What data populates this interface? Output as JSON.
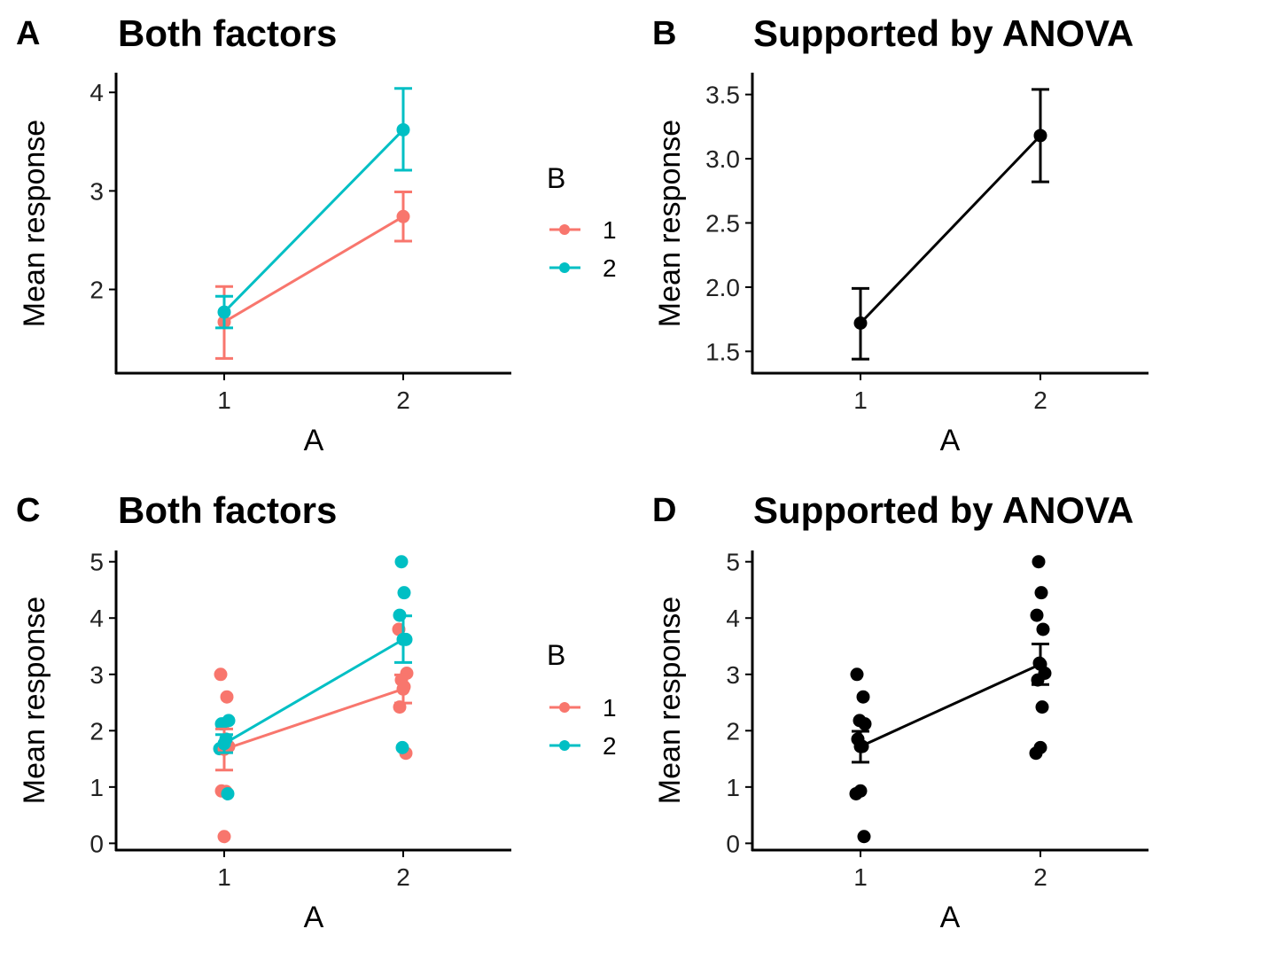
{
  "colors": {
    "series_1": "#F8766D",
    "series_2": "#00BFC4",
    "black": "#000000"
  },
  "chart_data": [
    {
      "panel": "A",
      "type": "line",
      "title": "Both factors",
      "xlabel": "A",
      "ylabel": "Mean response",
      "categories": [
        "1",
        "2"
      ],
      "y_ticks": [
        "2",
        "3",
        "4"
      ],
      "ylim": [
        1.15,
        4.2
      ],
      "legend": {
        "title": "B",
        "position": "right"
      },
      "series": [
        {
          "name": "1",
          "color": "#F8766D",
          "means": [
            1.67,
            2.74
          ],
          "lower": [
            1.3,
            2.49
          ],
          "upper": [
            2.03,
            2.99
          ]
        },
        {
          "name": "2",
          "color": "#00BFC4",
          "means": [
            1.77,
            3.62
          ],
          "lower": [
            1.61,
            3.21
          ],
          "upper": [
            1.93,
            4.04
          ]
        }
      ]
    },
    {
      "panel": "B",
      "type": "line",
      "title": "Supported by ANOVA",
      "xlabel": "A",
      "ylabel": "Mean response",
      "categories": [
        "1",
        "2"
      ],
      "y_ticks": [
        "1.5",
        "2.0",
        "2.5",
        "3.0",
        "3.5"
      ],
      "ylim": [
        1.33,
        3.67
      ],
      "series": [
        {
          "color": "#000000",
          "means": [
            1.72,
            3.18
          ],
          "lower": [
            1.44,
            2.82
          ],
          "upper": [
            1.99,
            3.54
          ]
        }
      ]
    },
    {
      "panel": "C",
      "type": "scatter",
      "title": "Both factors",
      "xlabel": "A",
      "ylabel": "Mean response",
      "categories": [
        "1",
        "2"
      ],
      "y_ticks": [
        "0",
        "1",
        "2",
        "3",
        "4",
        "5"
      ],
      "ylim": [
        -0.12,
        5.2
      ],
      "legend": {
        "title": "B",
        "position": "right"
      },
      "series": [
        {
          "name": "1",
          "color": "#F8766D",
          "means": [
            1.67,
            2.74
          ],
          "lower": [
            1.3,
            2.49
          ],
          "upper": [
            2.03,
            2.99
          ],
          "points": [
            {
              "x": "1",
              "y": 3.0
            },
            {
              "x": "1",
              "y": 2.6
            },
            {
              "x": "1",
              "y": 2.12
            },
            {
              "x": "1",
              "y": 1.72
            },
            {
              "x": "1",
              "y": 0.93
            },
            {
              "x": "1",
              "y": 0.92
            },
            {
              "x": "1",
              "y": 0.12
            },
            {
              "x": "2",
              "y": 3.8
            },
            {
              "x": "2",
              "y": 3.02
            },
            {
              "x": "2",
              "y": 2.9
            },
            {
              "x": "2",
              "y": 2.78
            },
            {
              "x": "2",
              "y": 2.42
            },
            {
              "x": "2",
              "y": 1.6
            }
          ]
        },
        {
          "name": "2",
          "color": "#00BFC4",
          "means": [
            1.77,
            3.62
          ],
          "lower": [
            1.61,
            3.21
          ],
          "upper": [
            1.93,
            4.04
          ],
          "points": [
            {
              "x": "1",
              "y": 2.18
            },
            {
              "x": "1",
              "y": 2.12
            },
            {
              "x": "1",
              "y": 1.85
            },
            {
              "x": "1",
              "y": 1.72
            },
            {
              "x": "1",
              "y": 1.68
            },
            {
              "x": "1",
              "y": 0.88
            },
            {
              "x": "2",
              "y": 5.0
            },
            {
              "x": "2",
              "y": 4.45
            },
            {
              "x": "2",
              "y": 4.05
            },
            {
              "x": "2",
              "y": 3.62
            },
            {
              "x": "2",
              "y": 1.7
            }
          ]
        }
      ]
    },
    {
      "panel": "D",
      "type": "scatter",
      "title": "Supported by ANOVA",
      "xlabel": "A",
      "ylabel": "Mean response",
      "categories": [
        "1",
        "2"
      ],
      "y_ticks": [
        "0",
        "1",
        "2",
        "3",
        "4",
        "5"
      ],
      "ylim": [
        -0.12,
        5.2
      ],
      "series": [
        {
          "color": "#000000",
          "means": [
            1.72,
            3.18
          ],
          "lower": [
            1.44,
            2.82
          ],
          "upper": [
            1.99,
            3.54
          ],
          "points": [
            {
              "x": "1",
              "y": 3.0
            },
            {
              "x": "1",
              "y": 2.6
            },
            {
              "x": "1",
              "y": 2.18
            },
            {
              "x": "1",
              "y": 2.12
            },
            {
              "x": "1",
              "y": 1.85
            },
            {
              "x": "1",
              "y": 1.72
            },
            {
              "x": "1",
              "y": 0.93
            },
            {
              "x": "1",
              "y": 0.88
            },
            {
              "x": "1",
              "y": 0.12
            },
            {
              "x": "2",
              "y": 5.0
            },
            {
              "x": "2",
              "y": 4.45
            },
            {
              "x": "2",
              "y": 4.05
            },
            {
              "x": "2",
              "y": 3.8
            },
            {
              "x": "2",
              "y": 3.2
            },
            {
              "x": "2",
              "y": 3.02
            },
            {
              "x": "2",
              "y": 2.9
            },
            {
              "x": "2",
              "y": 2.42
            },
            {
              "x": "2",
              "y": 1.7
            },
            {
              "x": "2",
              "y": 1.6
            }
          ]
        }
      ]
    }
  ]
}
